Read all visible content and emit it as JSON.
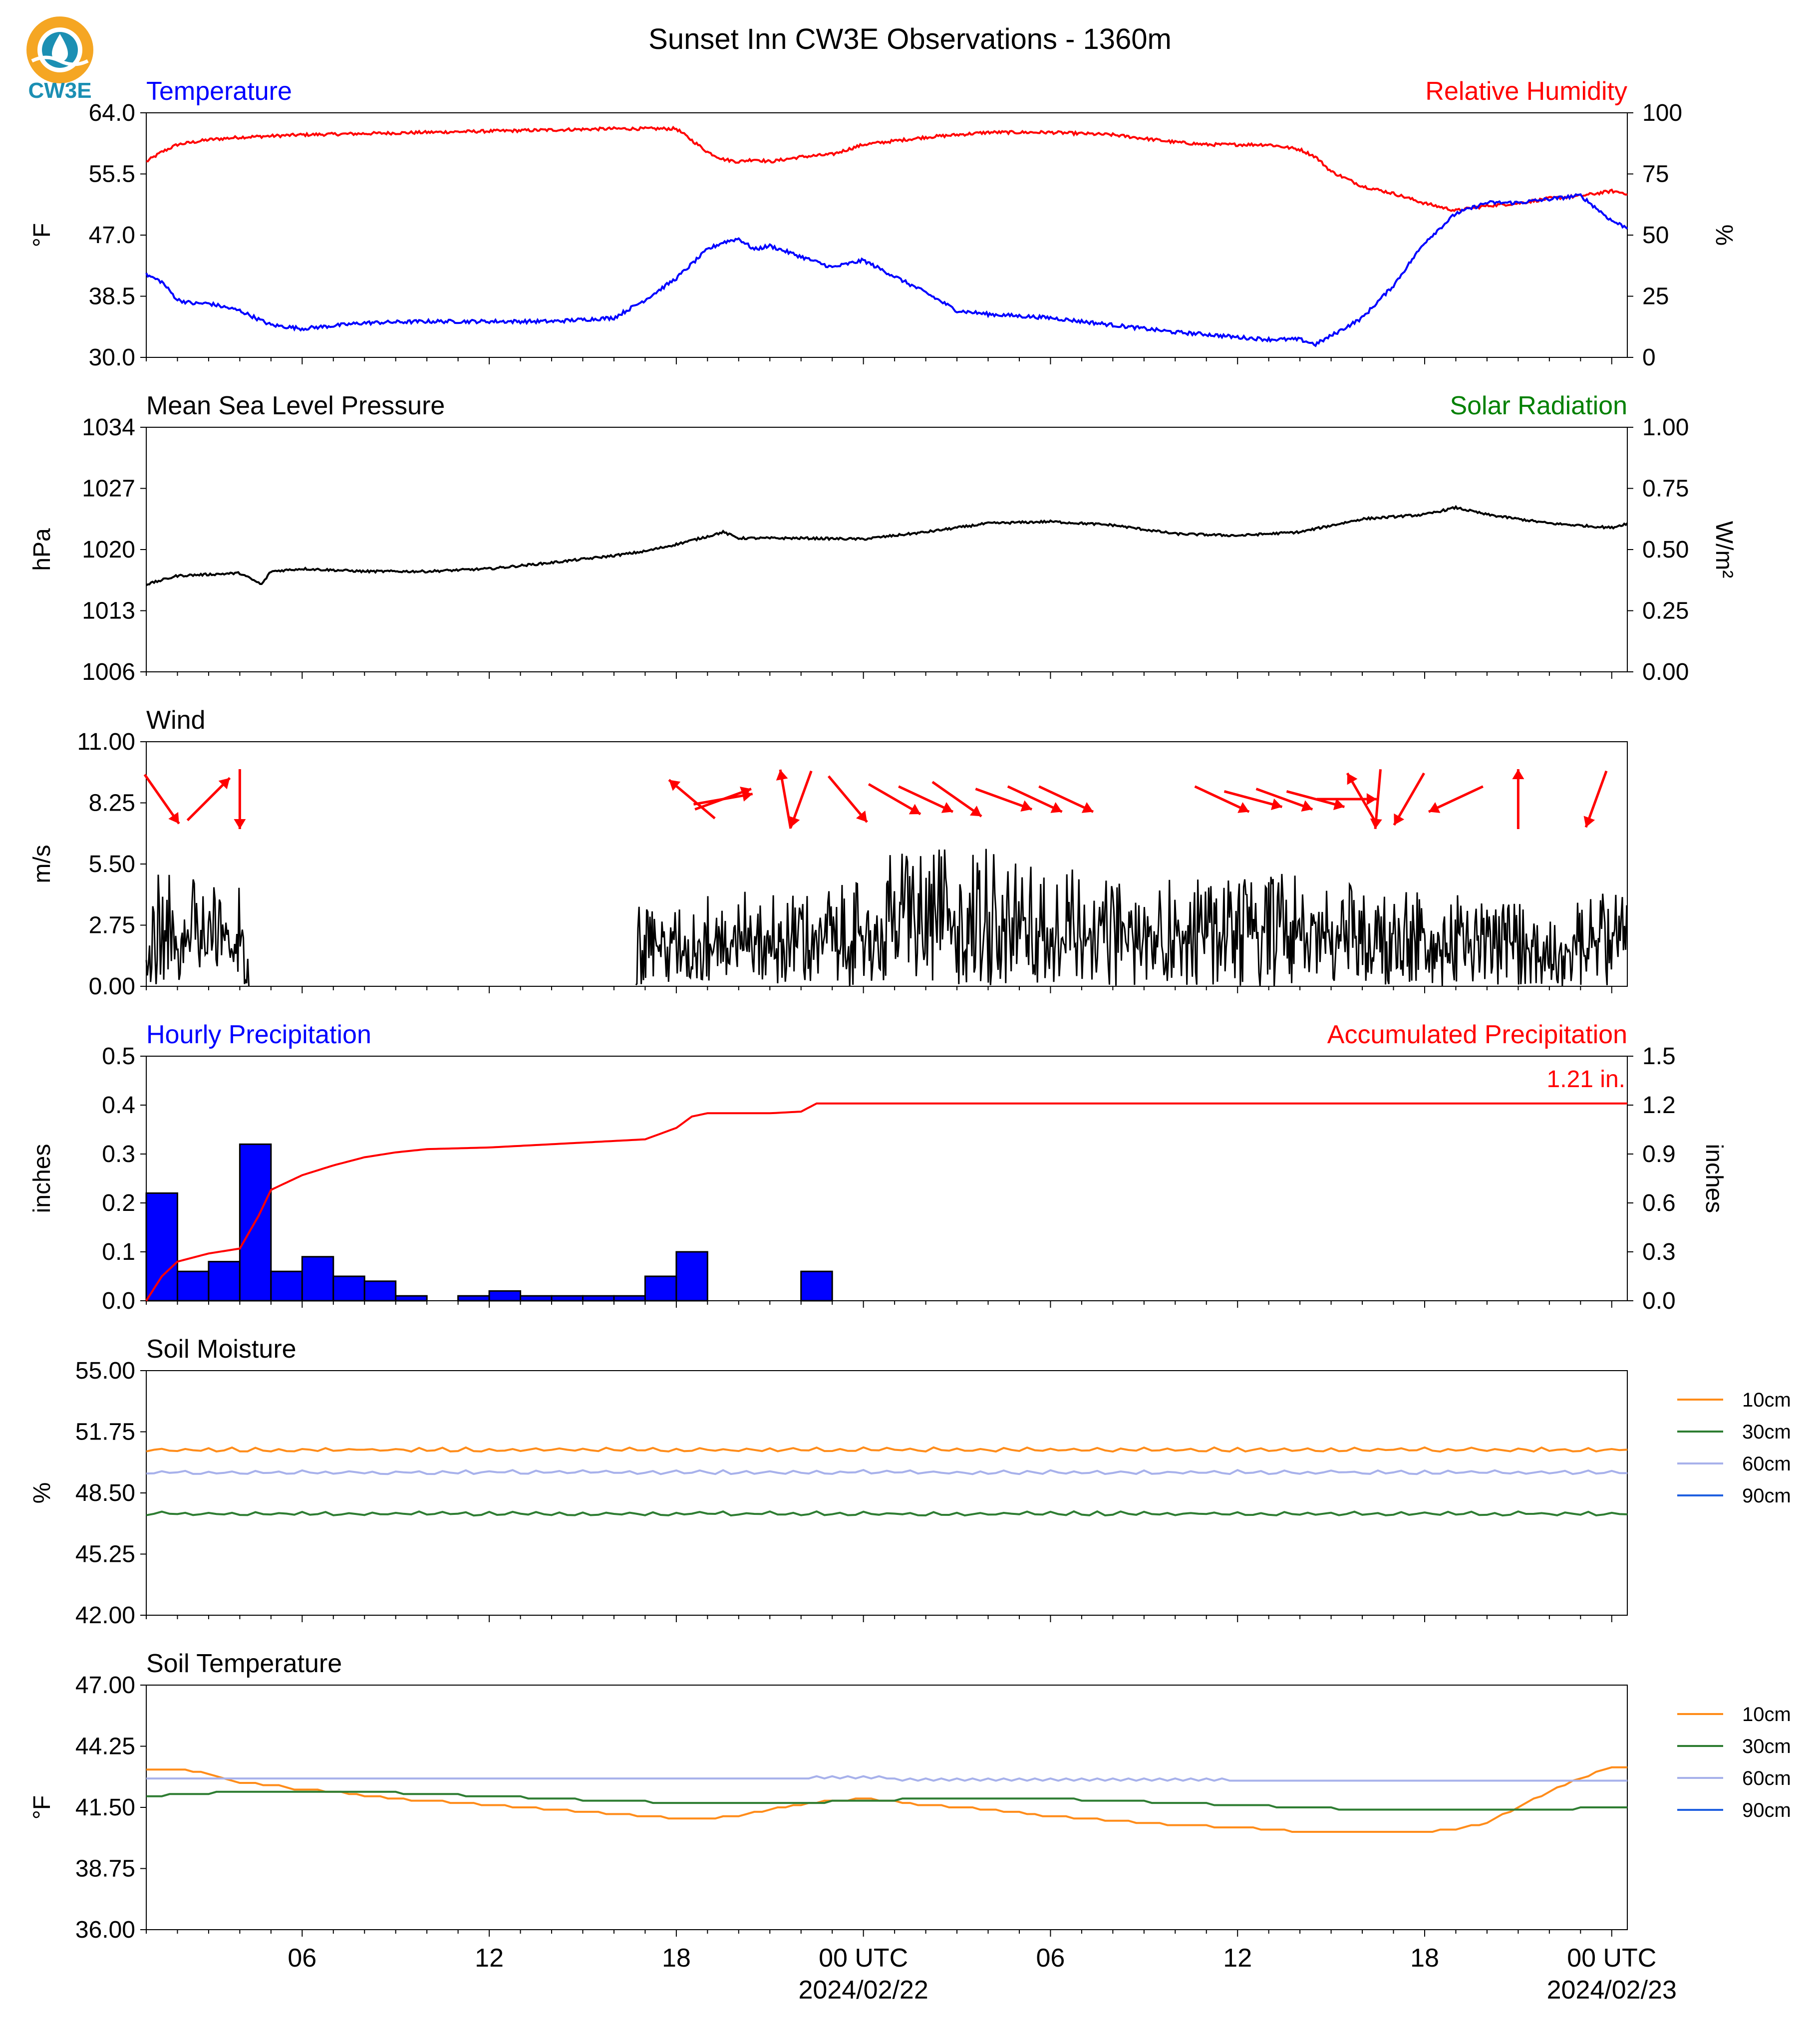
{
  "title": "Sunset Inn CW3E Observations - 1360m",
  "logo_text": "CW3E",
  "colors": {
    "blue": "#0000ff",
    "red": "#ff0000",
    "green": "#008000",
    "black": "#000000",
    "orange": "#ff8c1a",
    "dkgreen": "#2e7d32",
    "lavender": "#a7b1eb",
    "royal": "#1f5fe0",
    "logo_orange": "#f5a623",
    "logo_teal": "#1b8fb3"
  },
  "time_axis": {
    "tick_labels": [
      "06",
      "12",
      "18",
      "00 UTC",
      "06",
      "12",
      "18",
      "00 UTC"
    ],
    "date_labels": [
      "2024/02/22",
      "2024/02/23"
    ]
  },
  "chart_data": [
    {
      "type": "line",
      "title": "Temperature / Relative Humidity",
      "left_title": "Temperature",
      "right_title": "Relative Humidity",
      "ylabel": "°F",
      "ylabel_right": "%",
      "ylim": [
        30.0,
        64.0
      ],
      "ylim_right": [
        0,
        100
      ],
      "yticks": [
        "30.0",
        "38.5",
        "47.0",
        "55.5",
        "64.0"
      ],
      "yticks_right": [
        "0",
        "25",
        "50",
        "75",
        "100"
      ],
      "x_hours": [
        1,
        1.5,
        2,
        2.5,
        3,
        4,
        5,
        6,
        8,
        10,
        12,
        14,
        16,
        17,
        18,
        19,
        19.5,
        20,
        20.5,
        21,
        22,
        23,
        24,
        26,
        27,
        28,
        30,
        32,
        34,
        35,
        36,
        37,
        38,
        38.5,
        39,
        40,
        41,
        42,
        43,
        44,
        45,
        46,
        47,
        48,
        48.5
      ],
      "temperature": [
        41.5,
        40.5,
        38.0,
        37.5,
        37.5,
        36.5,
        34.5,
        34.0,
        34.8,
        35.0,
        35.0,
        35.0,
        35.5,
        38.0,
        41.0,
        45.0,
        46.0,
        46.5,
        45.0,
        45.5,
        44.0,
        42.5,
        43.5,
        39.0,
        36.5,
        36.0,
        35.5,
        34.5,
        33.5,
        33.2,
        32.8,
        32.5,
        32.5,
        31.8,
        33.0,
        35.5,
        40.0,
        46.0,
        50.0,
        51.5,
        51.5,
        52.0,
        52.5,
        49.0,
        48.0
      ],
      "relative_humidity": [
        80,
        84,
        87,
        88,
        89,
        90,
        90.5,
        91,
        91.5,
        92,
        92.5,
        93,
        93.5,
        93.5,
        93.5,
        84,
        81,
        80,
        81,
        80,
        82,
        83,
        87,
        90,
        91,
        92,
        92,
        91,
        88,
        87,
        87,
        87,
        85,
        82,
        76,
        70,
        67,
        63,
        60,
        62,
        63,
        65,
        66,
        68,
        67
      ]
    },
    {
      "type": "line",
      "title": "Mean Sea Level Pressure",
      "right_title": "Solar Radiation",
      "ylabel": "hPa",
      "ylabel_right": "W/m²",
      "ylim": [
        1006,
        1034
      ],
      "ylim_right": [
        0.0,
        1.0
      ],
      "yticks": [
        "1006",
        "1013",
        "1020",
        "1027",
        "1034"
      ],
      "yticks_right": [
        "0.00",
        "0.25",
        "0.50",
        "0.75",
        "1.00"
      ],
      "x_hours": [
        1,
        2,
        4,
        4.7,
        5,
        6,
        8,
        10,
        12,
        14,
        16,
        17,
        18,
        19,
        19.5,
        20,
        22,
        24,
        26,
        28,
        30,
        32,
        34,
        36,
        38,
        40,
        42,
        43,
        44,
        46,
        48,
        48.5
      ],
      "values": [
        1016.0,
        1017.0,
        1017.3,
        1016.0,
        1017.5,
        1017.8,
        1017.5,
        1017.5,
        1017.8,
        1018.5,
        1019.3,
        1019.8,
        1020.6,
        1021.5,
        1022.0,
        1021.3,
        1021.3,
        1021.2,
        1022.0,
        1023.0,
        1023.2,
        1022.8,
        1021.8,
        1021.6,
        1022.0,
        1023.5,
        1024.0,
        1024.8,
        1024.0,
        1023.0,
        1022.5,
        1023.0
      ]
    },
    {
      "type": "line",
      "title": "Wind",
      "ylabel": "m/s",
      "ylim": [
        0.0,
        11.0
      ],
      "yticks": [
        "0.00",
        "2.75",
        "5.50",
        "8.25",
        "11.00"
      ],
      "segments": [
        [
          1,
          4.3
        ],
        [
          16.7,
          48.5
        ]
      ],
      "speed_envelope": {
        "x_hours": [
          1,
          2,
          3,
          4,
          4.3,
          16.7,
          17,
          18,
          19,
          20,
          21,
          22,
          23,
          24,
          25,
          26,
          27,
          28,
          29,
          30,
          31,
          32,
          33,
          34,
          35,
          36,
          37,
          38,
          39,
          40,
          41,
          42,
          43,
          44,
          45,
          46,
          47,
          48,
          48.5
        ],
        "peak": [
          5.0,
          5.3,
          4.5,
          4.6,
          4.6,
          3.9,
          3.7,
          3.8,
          4.2,
          4.5,
          4.2,
          4.3,
          4.5,
          4.7,
          6.5,
          6.2,
          6.3,
          6.4,
          5.5,
          5.7,
          5.2,
          4.7,
          4.8,
          4.9,
          4.8,
          5.0,
          5.1,
          5.2,
          4.8,
          4.7,
          4.5,
          4.3,
          4.1,
          4.1,
          3.8,
          3.7,
          3.8,
          4.4,
          5.0
        ]
      },
      "arrows": [
        {
          "x_hour": 1.5,
          "dir_deg": 325
        },
        {
          "x_hour": 4.0,
          "dir_deg": 0
        },
        {
          "x_hour": 3.0,
          "dir_deg": 225
        },
        {
          "x_hour": 18.5,
          "dir_deg": 130
        },
        {
          "x_hour": 19.5,
          "dir_deg": 250
        },
        {
          "x_hour": 19.5,
          "dir_deg": 260
        },
        {
          "x_hour": 21.5,
          "dir_deg": 170
        },
        {
          "x_hour": 22.0,
          "dir_deg": 20
        },
        {
          "x_hour": 23.5,
          "dir_deg": 320
        },
        {
          "x_hour": 25.0,
          "dir_deg": 300
        },
        {
          "x_hour": 26.0,
          "dir_deg": 295
        },
        {
          "x_hour": 27.0,
          "dir_deg": 305
        },
        {
          "x_hour": 28.5,
          "dir_deg": 290
        },
        {
          "x_hour": 29.5,
          "dir_deg": 295
        },
        {
          "x_hour": 30.5,
          "dir_deg": 295
        },
        {
          "x_hour": 35.5,
          "dir_deg": 295
        },
        {
          "x_hour": 36.5,
          "dir_deg": 285
        },
        {
          "x_hour": 37.5,
          "dir_deg": 290
        },
        {
          "x_hour": 38.5,
          "dir_deg": 285
        },
        {
          "x_hour": 39.5,
          "dir_deg": 270
        },
        {
          "x_hour": 40.0,
          "dir_deg": 150
        },
        {
          "x_hour": 40.5,
          "dir_deg": 5
        },
        {
          "x_hour": 41.5,
          "dir_deg": 30
        },
        {
          "x_hour": 43.0,
          "dir_deg": 65
        },
        {
          "x_hour": 45.0,
          "dir_deg": 180
        },
        {
          "x_hour": 47.5,
          "dir_deg": 20
        }
      ]
    },
    {
      "type": "bar",
      "title": "Hourly Precipitation",
      "right_title": "Accumulated Precipitation",
      "ylabel": "inches",
      "ylabel_right": "inches",
      "ylim": [
        0.0,
        0.5
      ],
      "ylim_right": [
        0.0,
        1.5
      ],
      "yticks": [
        "0.0",
        "0.1",
        "0.2",
        "0.3",
        "0.4",
        "0.5"
      ],
      "yticks_right": [
        "0.0",
        "0.3",
        "0.6",
        "0.9",
        "1.2",
        "1.5"
      ],
      "annotation": "1.21 in.",
      "bar_hours": [
        1,
        2,
        3,
        4,
        5,
        6,
        7,
        8,
        9,
        10,
        11,
        12,
        13,
        14,
        15,
        16,
        17,
        18,
        19,
        20,
        21,
        22,
        23
      ],
      "values": [
        0.22,
        0.06,
        0.08,
        0.32,
        0.06,
        0.09,
        0.05,
        0.04,
        0.01,
        0,
        0.01,
        0.02,
        0.01,
        0.01,
        0.01,
        0.01,
        0.05,
        0.1,
        0,
        0,
        0,
        0.06,
        0
      ],
      "accumulated": {
        "x_hours": [
          1,
          1.5,
          2,
          3,
          4,
          4.6,
          5,
          6,
          7,
          8,
          9,
          10,
          12,
          14,
          16,
          17,
          18,
          18.5,
          19,
          21,
          22,
          22.5,
          23,
          48.5
        ],
        "values": [
          0.0,
          0.15,
          0.24,
          0.29,
          0.32,
          0.52,
          0.68,
          0.77,
          0.83,
          0.88,
          0.91,
          0.93,
          0.94,
          0.96,
          0.98,
          0.99,
          1.06,
          1.13,
          1.15,
          1.15,
          1.16,
          1.21,
          1.21,
          1.21
        ]
      }
    },
    {
      "type": "line",
      "title": "Soil Moisture",
      "ylabel": "%",
      "ylim": [
        42.0,
        55.0
      ],
      "yticks": [
        "42.00",
        "45.25",
        "48.50",
        "51.75",
        "55.00"
      ],
      "series": [
        {
          "name": "10cm",
          "color_key": "orange",
          "level": 50.8
        },
        {
          "name": "30cm",
          "color_key": "dkgreen",
          "level": 47.4
        },
        {
          "name": "60cm",
          "color_key": "lavender",
          "level": 49.6
        },
        {
          "name": "90cm",
          "color_key": "royal",
          "level": null
        }
      ]
    },
    {
      "type": "line",
      "title": "Soil Temperature",
      "ylabel": "°F",
      "ylim": [
        36.0,
        47.0
      ],
      "yticks": [
        "36.00",
        "38.75",
        "41.50",
        "44.25",
        "47.00"
      ],
      "series": [
        {
          "name": "10cm",
          "color_key": "orange",
          "x_hours": [
            1,
            2,
            3,
            4,
            5,
            6,
            7,
            8,
            10,
            12,
            14,
            16,
            17,
            18,
            19,
            20,
            21,
            22,
            23,
            24,
            26,
            28,
            30,
            32,
            34,
            36,
            38,
            40,
            42,
            43,
            44,
            45,
            46,
            47,
            48,
            48.5
          ],
          "values": [
            43.2,
            43.2,
            43.0,
            42.6,
            42.5,
            42.3,
            42.2,
            42.0,
            41.8,
            41.6,
            41.4,
            41.2,
            41.1,
            41.0,
            41.0,
            41.1,
            41.4,
            41.6,
            41.8,
            41.9,
            41.6,
            41.4,
            41.1,
            40.9,
            40.7,
            40.6,
            40.4,
            40.4,
            40.4,
            40.5,
            40.8,
            41.5,
            42.2,
            42.8,
            43.3,
            43.3
          ]
        },
        {
          "name": "30cm",
          "color_key": "dkgreen",
          "x_hours": [
            1,
            4,
            8,
            12,
            14,
            16,
            18,
            20,
            22,
            24,
            26,
            30,
            32,
            34,
            36,
            38,
            40,
            42,
            44,
            46,
            48,
            48.5
          ],
          "values": [
            42.0,
            42.2,
            42.2,
            42.0,
            41.9,
            41.8,
            41.7,
            41.7,
            41.7,
            41.8,
            41.9,
            41.9,
            41.8,
            41.7,
            41.6,
            41.5,
            41.4,
            41.4,
            41.4,
            41.4,
            41.5,
            41.5
          ]
        },
        {
          "name": "60cm",
          "color_key": "lavender",
          "x_hours": [
            1,
            48.5
          ],
          "values": [
            42.8,
            42.7
          ]
        },
        {
          "name": "90cm",
          "color_key": "royal",
          "x_hours": [],
          "values": []
        }
      ]
    }
  ]
}
